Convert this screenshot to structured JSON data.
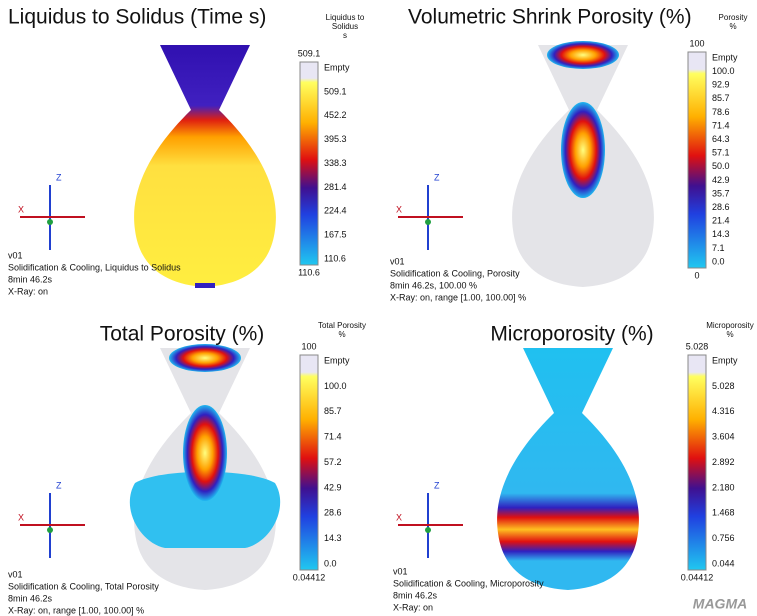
{
  "panels": [
    {
      "title": "Liquidus to Solidus (Time s)",
      "legend_title": [
        "Liquidus to",
        "Solidus",
        "s"
      ],
      "legend_top": "509.1",
      "legend_labels": [
        "Empty",
        "509.1",
        "452.2",
        "395.3",
        "338.3",
        "281.4",
        "224.4",
        "167.5",
        "110.6"
      ],
      "legend_bottom": "110.6",
      "axis_labels": {
        "z": "Z",
        "x": "X"
      },
      "info": [
        "v01",
        "Solidification & Cooling, Liquidus to Solidus",
        "8min 46.2s",
        "X-Ray: on"
      ]
    },
    {
      "title": "Volumetric Shrink Porosity (%)",
      "legend_title": [
        "Porosity",
        "%"
      ],
      "legend_top": "100",
      "legend_labels": [
        "Empty",
        "100.0",
        "92.9",
        "85.7",
        "78.6",
        "71.4",
        "64.3",
        "57.1",
        "50.0",
        "42.9",
        "35.7",
        "28.6",
        "21.4",
        "14.3",
        "7.1",
        "0.0"
      ],
      "legend_bottom": "0",
      "axis_labels": {
        "z": "Z",
        "x": "X"
      },
      "info": [
        "v01",
        "Solidification & Cooling, Porosity",
        "8min 46.2s, 100.00 %",
        "X-Ray: on, range [1.00, 100.00] %"
      ]
    },
    {
      "title": "Total Porosity (%)",
      "legend_title": [
        "Total Porosity",
        "%"
      ],
      "legend_top": "100",
      "legend_labels": [
        "Empty",
        "100.0",
        "85.7",
        "71.4",
        "57.2",
        "42.9",
        "28.6",
        "14.3",
        "0.0"
      ],
      "legend_bottom": "0.04412",
      "axis_labels": {
        "z": "Z",
        "x": "X"
      },
      "info": [
        "v01",
        "Solidification & Cooling, Total Porosity",
        "8min 46.2s",
        "X-Ray: on, range [1.00, 100.00] %"
      ]
    },
    {
      "title": "Microporosity (%)",
      "legend_title": [
        "Microporosity",
        "%"
      ],
      "legend_top": "5.028",
      "legend_labels": [
        "Empty",
        "5.028",
        "4.316",
        "3.604",
        "2.892",
        "2.180",
        "1.468",
        "0.756",
        "0.044"
      ],
      "legend_bottom": "0.04412",
      "axis_labels": {
        "z": "Z",
        "x": "X"
      },
      "info": [
        "v01",
        "Solidification & Cooling, Microporosity",
        "8min 46.2s",
        "X-Ray: on"
      ]
    }
  ],
  "logo": "MAGMA"
}
